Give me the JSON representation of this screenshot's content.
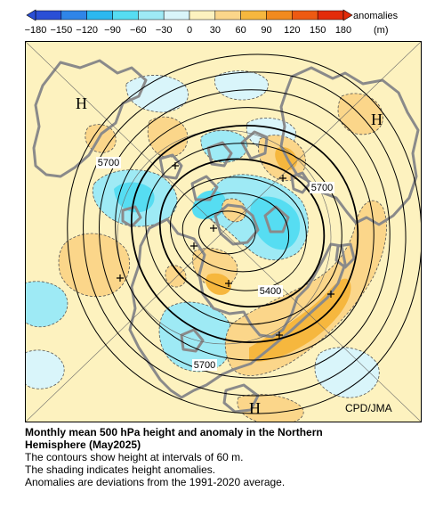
{
  "legend": {
    "tick_labels": [
      "−180",
      "−150",
      "−120",
      "−90",
      "−60",
      "−30",
      "0",
      "30",
      "60",
      "90",
      "120",
      "150",
      "180"
    ],
    "label": "anomalies",
    "unit": "(m)",
    "colors": [
      "#2a4fd6",
      "#2f85e8",
      "#2cb8ef",
      "#56ddf2",
      "#9eeaf5",
      "#d9f5fa",
      "#fdf2bf",
      "#fbd68a",
      "#f6b73e",
      "#f28a1e",
      "#ee5a12",
      "#e32b0a"
    ]
  },
  "map": {
    "high_labels": [
      "H",
      "H",
      "H"
    ],
    "contour_labels": [
      "5700",
      "5700",
      "5400",
      "5700"
    ],
    "credit": "CPD/JMA",
    "colors": {
      "background": "#fdf2bf",
      "land": "#8a8a8a",
      "contour": "#000000",
      "positive": "#f6b73e",
      "negative": "#56ddf2"
    }
  },
  "caption": {
    "title_line1": "Monthly mean 500 hPa height and anomaly in the Northern",
    "title_line2": "Hemisphere (May2025)",
    "line1": "The contours show height at intervals of 60 m.",
    "line2": "The shading indicates height anomalies.",
    "line3": "Anomalies are deviations from the 1991-2020 average."
  }
}
